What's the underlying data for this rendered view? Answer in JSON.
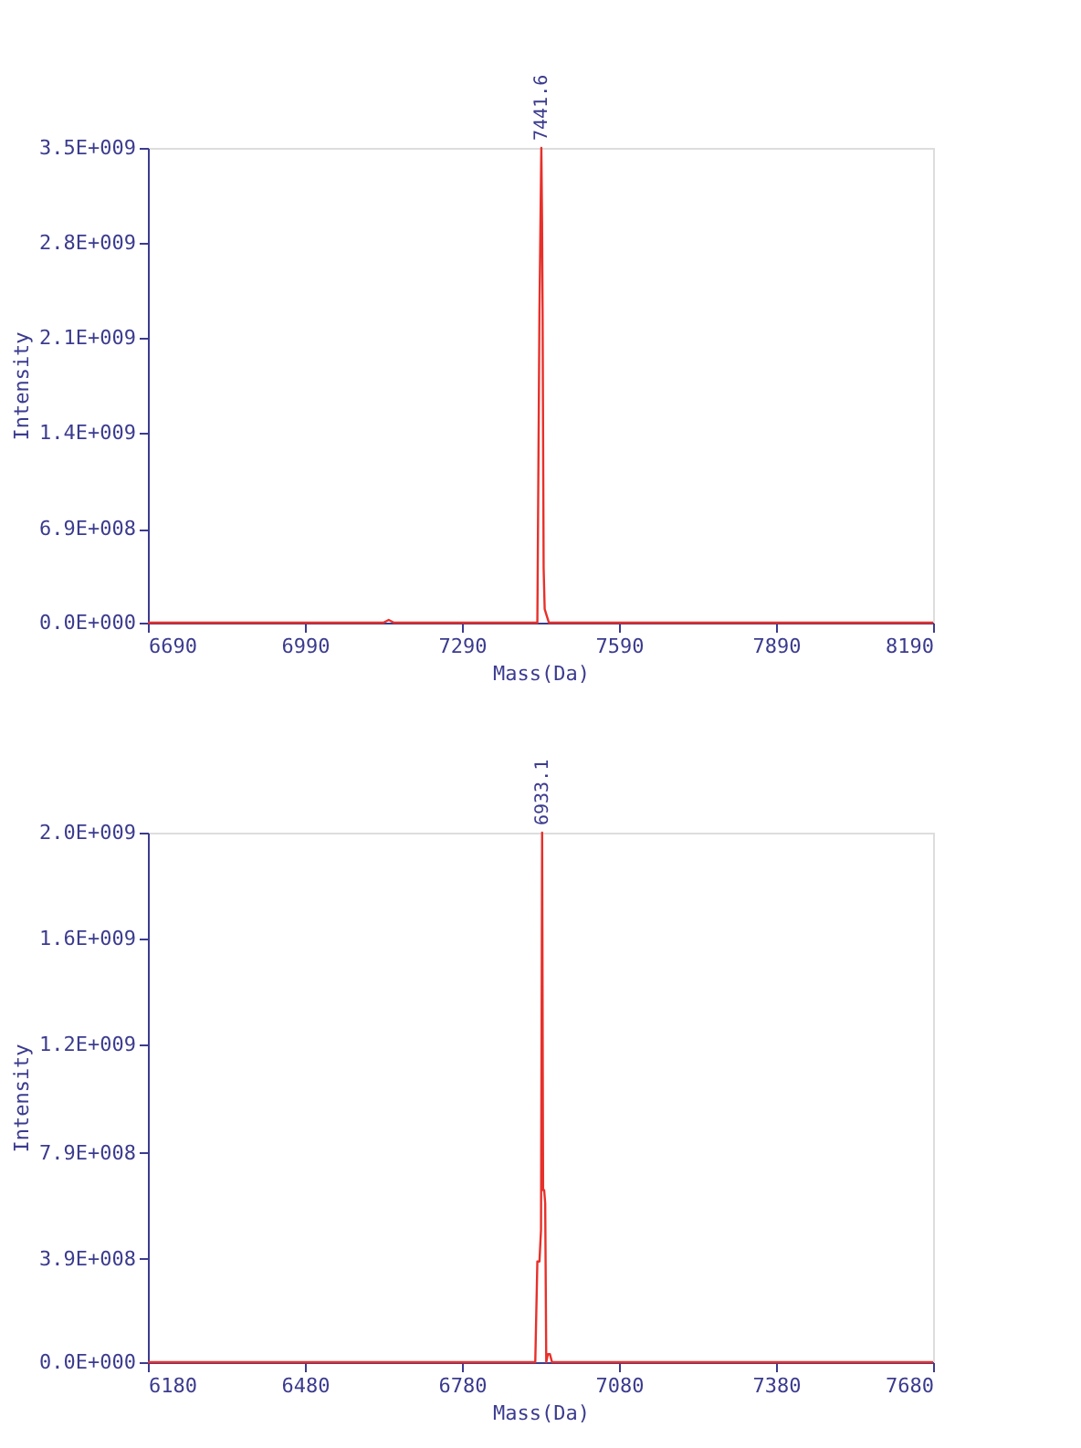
{
  "chart_data": [
    {
      "type": "line",
      "xlabel": "Mass(Da)",
      "ylabel": "Intensity",
      "xlim": [
        6690,
        8190
      ],
      "xticks": [
        6690,
        6990,
        7290,
        7590,
        7890,
        8190
      ],
      "ylim": [
        0,
        3500000000
      ],
      "yticks": [
        {
          "value": 0,
          "label": "0.0E+000"
        },
        {
          "value": 690000000,
          "label": "6.9E+008"
        },
        {
          "value": 1400000000,
          "label": "1.4E+009"
        },
        {
          "value": 2100000000,
          "label": "2.1E+009"
        },
        {
          "value": 2800000000,
          "label": "2.8E+009"
        },
        {
          "value": 3500000000,
          "label": "3.5E+009"
        }
      ],
      "grid": false,
      "legend": false,
      "marker": "none",
      "line_style": "solid",
      "series": [
        {
          "color": "#e8302a",
          "x": [
            6690,
            7140,
            7150,
            7160,
            7434,
            7438,
            7441.6,
            7443,
            7444,
            7446,
            7448,
            7452,
            7456,
            8190
          ],
          "values": [
            0,
            0,
            20000000,
            0,
            0,
            2300000000,
            3500000000,
            2950000000,
            2300000000,
            400000000,
            100000000,
            50000000,
            0,
            0
          ]
        }
      ],
      "annotations": [
        {
          "text": "7441.6",
          "x": 7441.6,
          "y": 3500000000
        }
      ]
    },
    {
      "type": "line",
      "xlabel": "Mass(Da)",
      "ylabel": "Intensity",
      "xlim": [
        6180,
        7680
      ],
      "xticks": [
        6180,
        6480,
        6780,
        7080,
        7380,
        7680
      ],
      "ylim": [
        0,
        2000000000
      ],
      "yticks": [
        {
          "value": 0,
          "label": "0.0E+000"
        },
        {
          "value": 390000000,
          "label": "3.9E+008"
        },
        {
          "value": 790000000,
          "label": "7.9E+008"
        },
        {
          "value": 1200000000,
          "label": "1.2E+009"
        },
        {
          "value": 1600000000,
          "label": "1.6E+009"
        },
        {
          "value": 2000000000,
          "label": "2.0E+009"
        }
      ],
      "grid": false,
      "legend": false,
      "marker": "none",
      "line_style": "solid",
      "series": [
        {
          "color": "#e8302a",
          "x": [
            6180,
            6920,
            6924,
            6928,
            6931,
            6933.1,
            6935,
            6937,
            6939,
            6941,
            6944,
            6948,
            6952,
            7680
          ],
          "values": [
            0,
            0,
            380000000,
            380000000,
            500000000,
            2000000000,
            650000000,
            650000000,
            600000000,
            0,
            30000000,
            30000000,
            0,
            0
          ]
        }
      ],
      "annotations": [
        {
          "text": "6933.1",
          "x": 6933.1,
          "y": 2000000000
        }
      ]
    }
  ]
}
